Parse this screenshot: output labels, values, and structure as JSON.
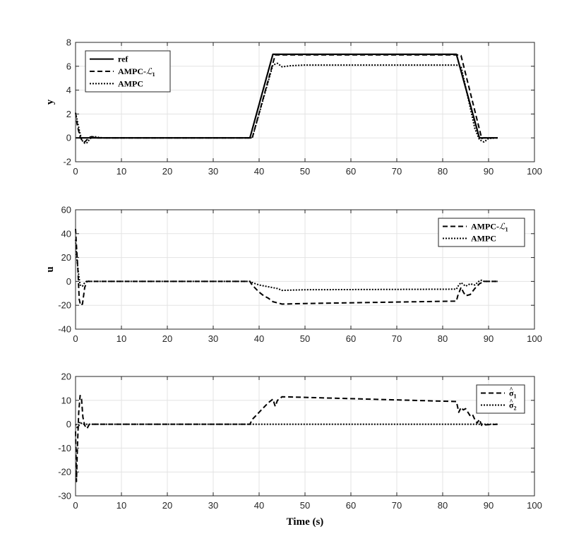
{
  "chart_data": [
    {
      "type": "line",
      "ylabel": "y",
      "xlabel": "",
      "xlim": [
        0,
        100
      ],
      "ylim": [
        -2,
        8
      ],
      "xticks": [
        0,
        10,
        20,
        30,
        40,
        50,
        60,
        70,
        80,
        90,
        100
      ],
      "yticks": [
        -2,
        0,
        2,
        4,
        6,
        8
      ],
      "grid": true,
      "legend": "top-left",
      "series": [
        {
          "name": "ref",
          "style": "solid",
          "x": [
            0,
            38,
            43,
            83,
            88,
            92
          ],
          "y": [
            0,
            0,
            7,
            7,
            0,
            0
          ]
        },
        {
          "name": "AMPC-",
          "name_math": "ℒ",
          "name_sub": "1",
          "style": "dashed",
          "x": [
            0,
            0.4,
            1,
            1.5,
            2,
            2.5,
            3,
            3.5,
            4,
            4.5,
            5,
            38,
            38.5,
            43.5,
            83.5,
            84,
            88.5,
            89,
            92
          ],
          "y": [
            2.1,
            1.0,
            0.1,
            -0.3,
            -0.35,
            -0.15,
            0.05,
            0.1,
            0.05,
            0,
            0,
            0,
            0,
            6.95,
            6.95,
            6.9,
            -0.05,
            0,
            0
          ]
        },
        {
          "name": "AMPC",
          "style": "dotted",
          "x": [
            0,
            0.5,
            1,
            1.5,
            2,
            2.5,
            3,
            3.5,
            4,
            5,
            6,
            38,
            38.5,
            43,
            44,
            45,
            47,
            50,
            83,
            84,
            87,
            88,
            89,
            90,
            92
          ],
          "y": [
            2.1,
            1.2,
            0.3,
            -0.25,
            -0.45,
            -0.4,
            -0.15,
            0.05,
            0.12,
            0.05,
            0,
            0,
            0,
            6.1,
            6.25,
            5.95,
            6.05,
            6.1,
            6.1,
            6.0,
            0.8,
            -0.15,
            -0.35,
            -0.05,
            0
          ]
        }
      ]
    },
    {
      "type": "line",
      "ylabel": "u",
      "xlabel": "",
      "xlim": [
        0,
        100
      ],
      "ylim": [
        -40,
        60
      ],
      "xticks": [
        0,
        10,
        20,
        30,
        40,
        50,
        60,
        70,
        80,
        90,
        100
      ],
      "yticks": [
        -40,
        -20,
        0,
        20,
        40,
        60
      ],
      "grid": true,
      "legend": "top-right",
      "series": [
        {
          "name": "AMPC-",
          "name_math": "ℒ",
          "name_sub": "1",
          "style": "dashed",
          "x": [
            0,
            0.2,
            0.5,
            0.8,
            1.1,
            1.5,
            2,
            2.5,
            3,
            5,
            38,
            38.3,
            39,
            40,
            41,
            42,
            43,
            44,
            45,
            50,
            83,
            83.3,
            84,
            84.5,
            85,
            86,
            87,
            88,
            89,
            92
          ],
          "y": [
            44,
            30,
            10,
            -15,
            -20,
            -19,
            -5,
            0,
            0,
            0,
            0,
            -2,
            -5,
            -9,
            -12,
            -14,
            -17,
            -18,
            -19,
            -18.5,
            -16.5,
            -12,
            -5,
            -9,
            -12,
            -11,
            -6,
            -2,
            0,
            0
          ]
        },
        {
          "name": "AMPC",
          "style": "dotted",
          "x": [
            0,
            0.3,
            0.7,
            1,
            1.5,
            2,
            2.5,
            3,
            5,
            38,
            38.5,
            40,
            42,
            44,
            45,
            50,
            83,
            83.5,
            84,
            85,
            86,
            87,
            88,
            88.5,
            89,
            92
          ],
          "y": [
            35,
            18,
            5,
            -3,
            -4,
            -1,
            0.5,
            0,
            0,
            0,
            -1,
            -3,
            -4.5,
            -6,
            -7.5,
            -7,
            -6.5,
            -3,
            -1,
            -4,
            -2,
            -3,
            0.5,
            1,
            0,
            0
          ]
        }
      ]
    },
    {
      "type": "line",
      "ylabel": "",
      "xlabel": "Time (s)",
      "xlim": [
        0,
        100
      ],
      "ylim": [
        -30,
        20
      ],
      "xticks": [
        0,
        10,
        20,
        30,
        40,
        50,
        60,
        70,
        80,
        90,
        100
      ],
      "yticks": [
        -30,
        -20,
        -10,
        0,
        10,
        20
      ],
      "grid": true,
      "legend": "top-right",
      "series": [
        {
          "name": "σ",
          "name_hat": true,
          "name_sub": "1",
          "style": "dashed",
          "x": [
            0,
            0.2,
            0.4,
            0.7,
            1,
            1.3,
            1.6,
            2,
            2.5,
            3,
            5,
            38,
            38.5,
            39,
            40,
            41,
            42,
            43,
            43.5,
            44,
            45,
            83,
            83.5,
            84,
            84.5,
            85,
            86,
            86.5,
            87,
            87.5,
            88,
            88.5,
            89,
            92
          ],
          "y": [
            -3,
            -24,
            -10,
            5,
            12,
            10.5,
            3,
            -0.5,
            -1.8,
            0,
            0,
            0,
            2,
            3,
            5,
            7,
            9,
            10.5,
            7.5,
            10,
            11.5,
            9.5,
            5,
            7,
            6,
            6.5,
            3.5,
            4,
            2,
            0.5,
            2,
            -0.5,
            -0.3,
            0
          ]
        },
        {
          "name": "σ",
          "name_hat": true,
          "name_sub": "2",
          "style": "dotted",
          "x": [
            0,
            0.5,
            1,
            1.5,
            2,
            92
          ],
          "y": [
            0,
            -2,
            1,
            0,
            0,
            0
          ]
        }
      ]
    }
  ]
}
